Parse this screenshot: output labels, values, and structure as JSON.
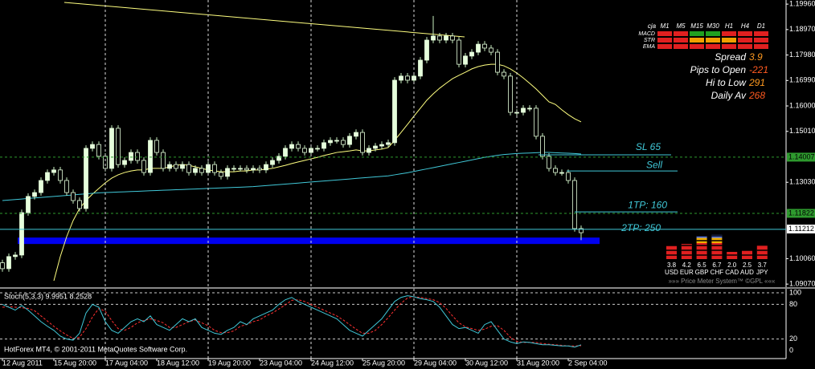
{
  "chart_data": {
    "type": "candlestick",
    "categories": [
      "12 Aug 2011",
      null,
      null,
      null,
      null,
      null,
      null,
      null,
      "15 Aug 20:00",
      null,
      null,
      null,
      null,
      null,
      null,
      null,
      "17 Aug 04:00",
      null,
      null,
      null,
      null,
      null,
      null,
      null,
      "18 Aug 12:00",
      null,
      null,
      null,
      null,
      null,
      null,
      null,
      "19 Aug 20:00",
      null,
      null,
      null,
      null,
      null,
      null,
      null,
      "23 Aug 04:00",
      null,
      null,
      null,
      null,
      null,
      null,
      null,
      "24 Aug 12:00",
      null,
      null,
      null,
      null,
      null,
      null,
      null,
      "25 Aug 20:00",
      null,
      null,
      null,
      null,
      null,
      null,
      null,
      "29 Aug 04:00",
      null,
      null,
      null,
      null,
      null,
      null,
      null,
      "30 Aug 12:00",
      null,
      null,
      null,
      null,
      null,
      null,
      null,
      "31 Aug 20:00",
      null,
      null,
      null,
      null,
      null,
      null,
      null,
      "2 Sep 04:00",
      null,
      null
    ],
    "open": [
      1.099,
      1.0967,
      1.1014,
      1.102,
      1.1185,
      1.1248,
      1.1263,
      1.131,
      1.1341,
      1.1351,
      1.131,
      1.1263,
      1.1232,
      1.1201,
      1.1435,
      1.145,
      1.1404,
      1.1357,
      1.1513,
      1.1372,
      1.1388,
      1.1419,
      1.1388,
      1.1341,
      1.1466,
      1.1419,
      1.1357,
      1.1372,
      1.1357,
      1.1372,
      1.1341,
      1.1357,
      1.1341,
      1.1372,
      1.1341,
      1.1326,
      1.1357,
      1.1357,
      1.1357,
      1.1351,
      1.1357,
      1.1351,
      1.1372,
      1.1388,
      1.1404,
      1.1435,
      1.145,
      1.1435,
      1.1419,
      1.1435,
      1.1435,
      1.1457,
      1.1466,
      1.1466,
      1.145,
      1.1482,
      1.1497,
      1.1419,
      1.1435,
      1.1444,
      1.145,
      1.1457,
      1.17,
      1.1716,
      1.17,
      1.1716,
      1.1778,
      1.1856,
      1.1872,
      1.1856,
      1.1872,
      1.1856,
      1.1762,
      1.1794,
      1.1809,
      1.184,
      1.1825,
      1.1809,
      1.1731,
      1.1716,
      1.1575,
      1.1575,
      1.1591,
      1.1591,
      1.1482,
      1.1404,
      1.1357,
      1.1341,
      1.1341,
      1.131,
      1.1123
    ],
    "high": [
      1.1002,
      1.1026,
      1.1032,
      1.1197,
      1.126,
      1.1275,
      1.1322,
      1.1353,
      1.1363,
      1.1363,
      1.1322,
      1.1275,
      1.1244,
      1.1447,
      1.1462,
      1.1462,
      1.1416,
      1.1525,
      1.1525,
      1.14,
      1.1431,
      1.1431,
      1.14,
      1.1478,
      1.1478,
      1.1431,
      1.1384,
      1.1384,
      1.1384,
      1.1384,
      1.1369,
      1.1369,
      1.1384,
      1.1384,
      1.1353,
      1.1369,
      1.1369,
      1.1369,
      1.1369,
      1.1369,
      1.1369,
      1.1384,
      1.14,
      1.1416,
      1.1447,
      1.1462,
      1.1462,
      1.1447,
      1.1447,
      1.1447,
      1.1469,
      1.1478,
      1.1478,
      1.1478,
      1.1494,
      1.1509,
      1.1509,
      1.1447,
      1.1456,
      1.1462,
      1.1469,
      1.1712,
      1.1728,
      1.1728,
      1.1728,
      1.179,
      1.1868,
      1.195,
      1.1884,
      1.1884,
      1.1884,
      1.1868,
      1.1806,
      1.1821,
      1.1852,
      1.1852,
      1.1837,
      1.1821,
      1.1743,
      1.1728,
      1.1587,
      1.1603,
      1.1603,
      1.1603,
      1.1494,
      1.1416,
      1.1369,
      1.1353,
      1.1353,
      1.1322,
      1.1135
    ],
    "low": [
      1.0955,
      1.0955,
      1.1002,
      1.1008,
      1.1173,
      1.1236,
      1.1251,
      1.1298,
      1.1329,
      1.1298,
      1.1251,
      1.122,
      1.1189,
      1.1189,
      1.1423,
      1.1392,
      1.1345,
      1.1345,
      1.136,
      1.136,
      1.1376,
      1.1376,
      1.1329,
      1.1329,
      1.1407,
      1.1345,
      1.1345,
      1.1345,
      1.1345,
      1.1329,
      1.1329,
      1.1329,
      1.1329,
      1.1329,
      1.1314,
      1.1314,
      1.1345,
      1.1345,
      1.1339,
      1.1339,
      1.1339,
      1.1339,
      1.136,
      1.1376,
      1.1392,
      1.1423,
      1.1423,
      1.1407,
      1.1407,
      1.1423,
      1.1423,
      1.1445,
      1.1454,
      1.1438,
      1.1438,
      1.147,
      1.1407,
      1.1407,
      1.1423,
      1.1432,
      1.1438,
      1.1445,
      1.1688,
      1.1688,
      1.1688,
      1.1704,
      1.1766,
      1.1844,
      1.1844,
      1.1844,
      1.1844,
      1.175,
      1.175,
      1.1782,
      1.1797,
      1.1813,
      1.1797,
      1.1719,
      1.1704,
      1.1563,
      1.1563,
      1.1563,
      1.1579,
      1.147,
      1.1392,
      1.1345,
      1.1329,
      1.1329,
      1.1298,
      1.1111,
      1.1078
    ],
    "close": [
      1.0967,
      1.1014,
      1.102,
      1.1185,
      1.1248,
      1.1263,
      1.131,
      1.1341,
      1.1351,
      1.131,
      1.1263,
      1.1232,
      1.1201,
      1.1435,
      1.145,
      1.1404,
      1.1357,
      1.1513,
      1.1372,
      1.1388,
      1.1419,
      1.1388,
      1.1341,
      1.1466,
      1.1419,
      1.1357,
      1.1372,
      1.1357,
      1.1372,
      1.1341,
      1.1357,
      1.1341,
      1.1372,
      1.1341,
      1.1326,
      1.1357,
      1.1357,
      1.1357,
      1.1351,
      1.1357,
      1.1351,
      1.1372,
      1.1388,
      1.1404,
      1.1435,
      1.145,
      1.1435,
      1.1419,
      1.1435,
      1.1435,
      1.1457,
      1.1466,
      1.1466,
      1.145,
      1.1482,
      1.1497,
      1.1419,
      1.1435,
      1.1444,
      1.145,
      1.1457,
      1.17,
      1.1716,
      1.17,
      1.1716,
      1.1778,
      1.1856,
      1.1872,
      1.1856,
      1.1872,
      1.1856,
      1.1762,
      1.1794,
      1.1809,
      1.184,
      1.1825,
      1.1809,
      1.1731,
      1.1716,
      1.1575,
      1.1575,
      1.1591,
      1.1591,
      1.1482,
      1.1404,
      1.1357,
      1.1341,
      1.1341,
      1.131,
      1.1123,
      1.1107
    ],
    "up_color": "#e6ffdc",
    "down_color": "#000000",
    "wick_color": "#c8f0c0",
    "ylim": [
      1.0895,
      1.2012
    ],
    "yticks": [
      {
        "value": 1.1996,
        "label": "1.19960"
      },
      {
        "value": 1.1897,
        "label": "1.18970"
      },
      {
        "value": 1.1798,
        "label": "1.17980"
      },
      {
        "value": 1.1699,
        "label": "1.16990"
      },
      {
        "value": 1.16,
        "label": "1.16000"
      },
      {
        "value": 1.1501,
        "label": "1.15010"
      },
      {
        "value": 1.1303,
        "label": "1.13030"
      },
      {
        "value": 1.1006,
        "label": "1.10060"
      },
      {
        "value": 1.0907,
        "label": "1.09070"
      }
    ],
    "price_markers": [
      {
        "value": 1.14007,
        "label": "1.14007",
        "color": "#2e9a2e",
        "line": true
      },
      {
        "value": 1.11822,
        "label": "1.11822",
        "color": "#2e9a2e",
        "line": true
      },
      {
        "value": 1.11212,
        "label": "1.11212",
        "color": "#ffffff",
        "line": false
      }
    ],
    "series": [
      {
        "color": "#ffff80",
        "values": [
          null,
          null,
          null,
          null,
          null,
          null,
          null,
          null,
          1.092,
          1.1014,
          1.1092,
          1.1154,
          1.1201,
          1.1232,
          1.1257,
          1.1279,
          1.1301,
          1.1319,
          1.1332,
          1.1341,
          1.1347,
          1.1351,
          1.1351,
          1.1357,
          1.1357,
          1.1357,
          1.1363,
          1.1369,
          1.1372,
          1.1369,
          1.1363,
          1.1357,
          1.1351,
          1.1347,
          1.1344,
          1.1344,
          1.1344,
          1.1347,
          1.1347,
          1.1351,
          1.1351,
          1.1354,
          1.1357,
          1.1363,
          1.1369,
          1.1376,
          1.1382,
          1.1388,
          1.1394,
          1.14,
          1.1407,
          1.1413,
          1.1419,
          1.1422,
          1.1425,
          1.1429,
          1.1425,
          1.1425,
          1.1429,
          1.1432,
          1.1438,
          1.1466,
          1.1497,
          1.1528,
          1.156,
          1.1591,
          1.1622,
          1.1647,
          1.1669,
          1.1688,
          1.1706,
          1.1719,
          1.1731,
          1.1744,
          1.1753,
          1.1759,
          1.1762,
          1.1762,
          1.1756,
          1.1744,
          1.1728,
          1.1709,
          1.1688,
          1.1666,
          1.1641,
          1.1616,
          1.1606,
          1.1585,
          1.1566,
          1.155,
          1.1538
        ]
      },
      {
        "color": "#40c8d8",
        "values": [
          1.1232,
          1.1234,
          1.1236,
          1.1238,
          1.124,
          1.1242,
          1.1244,
          1.1246,
          1.1248,
          1.125,
          1.1252,
          1.1254,
          1.1256,
          1.1258,
          1.126,
          1.1262,
          1.1263,
          1.1264,
          1.1265,
          1.1266,
          1.1267,
          1.1268,
          1.1269,
          1.127,
          1.1271,
          1.1272,
          1.1273,
          1.1274,
          1.1275,
          1.1276,
          1.1277,
          1.1278,
          1.1279,
          1.128,
          1.1281,
          1.1282,
          1.1283,
          1.1284,
          1.1285,
          1.1286,
          1.1288,
          1.129,
          1.1292,
          1.1294,
          1.1296,
          1.1298,
          1.13,
          1.1302,
          1.1304,
          1.1306,
          1.1308,
          1.131,
          1.1312,
          1.1314,
          1.1316,
          1.1318,
          1.132,
          1.1322,
          1.1324,
          1.1326,
          1.1328,
          1.1332,
          1.1336,
          1.134,
          1.1345,
          1.135,
          1.1355,
          1.136,
          1.1365,
          1.137,
          1.1375,
          1.138,
          1.1385,
          1.139,
          1.1395,
          1.14,
          1.1404,
          1.1408,
          1.1411,
          1.1413,
          1.1415,
          1.1416,
          1.1417,
          1.1418,
          1.1419,
          1.1419,
          1.1418,
          1.1417,
          1.1416,
          1.1415,
          1.1413
        ]
      }
    ],
    "levels": [
      {
        "label": "SL 65",
        "value": 1.141
      },
      {
        "label": "Sell",
        "value": 1.1347
      },
      {
        "label": "1TP: 160",
        "value": 1.1188
      },
      {
        "label": "2TP: 250",
        "value": 1.112
      }
    ],
    "level_color": "#40c8d8",
    "band": {
      "from": 1.1063,
      "to": 1.1088,
      "color": "#0000f0"
    },
    "grid": true,
    "stochastic": {
      "title": "Stoch(5,3,3) 9.9951 8.2528",
      "ylim": [
        0,
        100
      ],
      "yticks": [
        100,
        80,
        20,
        0
      ],
      "main": {
        "color": "#40c8d8",
        "values": [
          80,
          75,
          70,
          78,
          70,
          60,
          50,
          42,
          35,
          25,
          20,
          18,
          30,
          65,
          80,
          75,
          50,
          35,
          30,
          40,
          50,
          55,
          50,
          60,
          45,
          40,
          35,
          45,
          55,
          50,
          55,
          40,
          35,
          30,
          28,
          35,
          40,
          50,
          45,
          55,
          60,
          65,
          70,
          80,
          88,
          92,
          85,
          80,
          75,
          70,
          65,
          60,
          55,
          45,
          35,
          30,
          25,
          35,
          45,
          55,
          70,
          85,
          92,
          95,
          93,
          90,
          88,
          85,
          75,
          60,
          45,
          38,
          40,
          35,
          30,
          45,
          50,
          35,
          20,
          15,
          12,
          15,
          14,
          12,
          10,
          10,
          9,
          8,
          8,
          6,
          9.9951
        ]
      },
      "signal": {
        "color": "#ff3030",
        "values": [
          75,
          76,
          75,
          74,
          73,
          69,
          60,
          51,
          42,
          34,
          27,
          21,
          23,
          38,
          58,
          73,
          68,
          52,
          38,
          35,
          40,
          48,
          52,
          55,
          52,
          48,
          40,
          40,
          45,
          50,
          53,
          48,
          43,
          35,
          31,
          31,
          34,
          42,
          45,
          50,
          53,
          60,
          65,
          72,
          79,
          87,
          88,
          85,
          80,
          75,
          70,
          65,
          60,
          53,
          45,
          37,
          30,
          30,
          35,
          45,
          57,
          70,
          82,
          91,
          93,
          92,
          90,
          88,
          83,
          73,
          60,
          48,
          41,
          38,
          35,
          37,
          42,
          43,
          35,
          23,
          16,
          14,
          14,
          14,
          12,
          11,
          10,
          9,
          8,
          8,
          8.2528
        ]
      }
    },
    "copyright": "HotForex MT4, © 2001-2011 MetaQuotes Software Corp.",
    "signal_grid": {
      "corner": "cja",
      "timeframes": [
        "M1",
        "M5",
        "M15",
        "M30",
        "H1",
        "H4",
        "D1"
      ],
      "rows": [
        {
          "label": "MACD",
          "colors": [
            "#e02020",
            "#e02020",
            "#20a020",
            "#20a020",
            "#e02020",
            "#e02020",
            "#e02020"
          ]
        },
        {
          "label": "STR",
          "colors": [
            "#e02020",
            "#e02020",
            "#f0a000",
            "#f0a000",
            "#f0a000",
            "#e02020",
            "#e02020"
          ]
        },
        {
          "label": "EMA",
          "colors": [
            "#e02020",
            "#e02020",
            "#e02020",
            "#e02020",
            "#e02020",
            "#e02020",
            "#e02020"
          ]
        }
      ]
    },
    "stats": [
      {
        "label": "Spread",
        "value": 3.9,
        "color": "#ff9a20"
      },
      {
        "label": "Pips to Open",
        "value": -221,
        "color": "#ff5a20"
      },
      {
        "label": "Hi to Low",
        "value": 291,
        "color": "#ff9a20"
      },
      {
        "label": "Daily Av",
        "value": 268,
        "color": "#ff5a20"
      }
    ],
    "price_meter": {
      "currencies": [
        "USD",
        "EUR",
        "GBP",
        "CHF",
        "CAD",
        "AUD",
        "JPY"
      ],
      "values": [
        3.8,
        4.2,
        6.5,
        6.7,
        2,
        2.5,
        3.7
      ],
      "value_labels": [
        "3.8",
        "4.2",
        "6.5",
        "6.7",
        "2.0",
        "2.5",
        "3.7"
      ],
      "footer": "»»» Price Meter System™ ©GPL «««"
    }
  }
}
